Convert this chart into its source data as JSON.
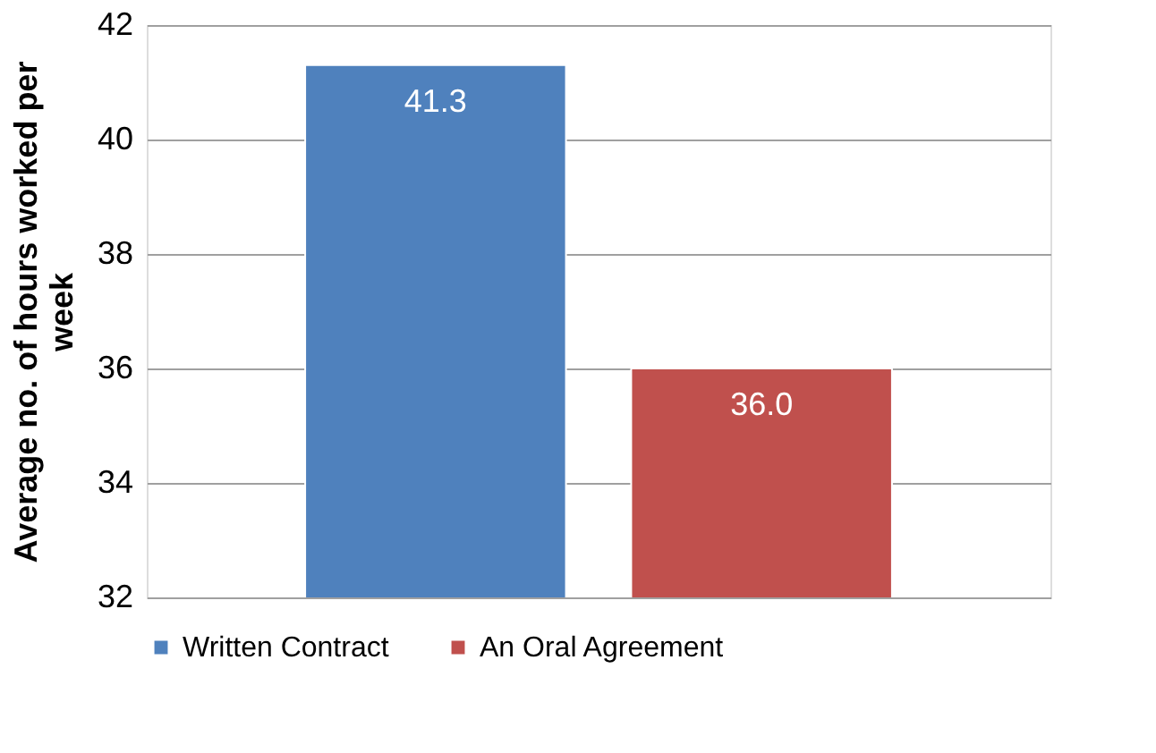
{
  "chart_data": {
    "type": "bar",
    "ylabel": "Average no. of hours worked per week",
    "categories": [
      null
    ],
    "series": [
      {
        "name": "Written Contract",
        "color": "#4f81bd",
        "values": [
          41.3
        ],
        "value_labels": [
          "41.3"
        ]
      },
      {
        "name": "An Oral Agreement",
        "color": "#c0504d",
        "values": [
          36.0
        ],
        "value_labels": [
          "36.0"
        ]
      }
    ],
    "ylim": [
      32,
      42
    ],
    "yticks": [
      32,
      34,
      36,
      38,
      40,
      42
    ],
    "grid": "y",
    "legend": "bottom"
  }
}
